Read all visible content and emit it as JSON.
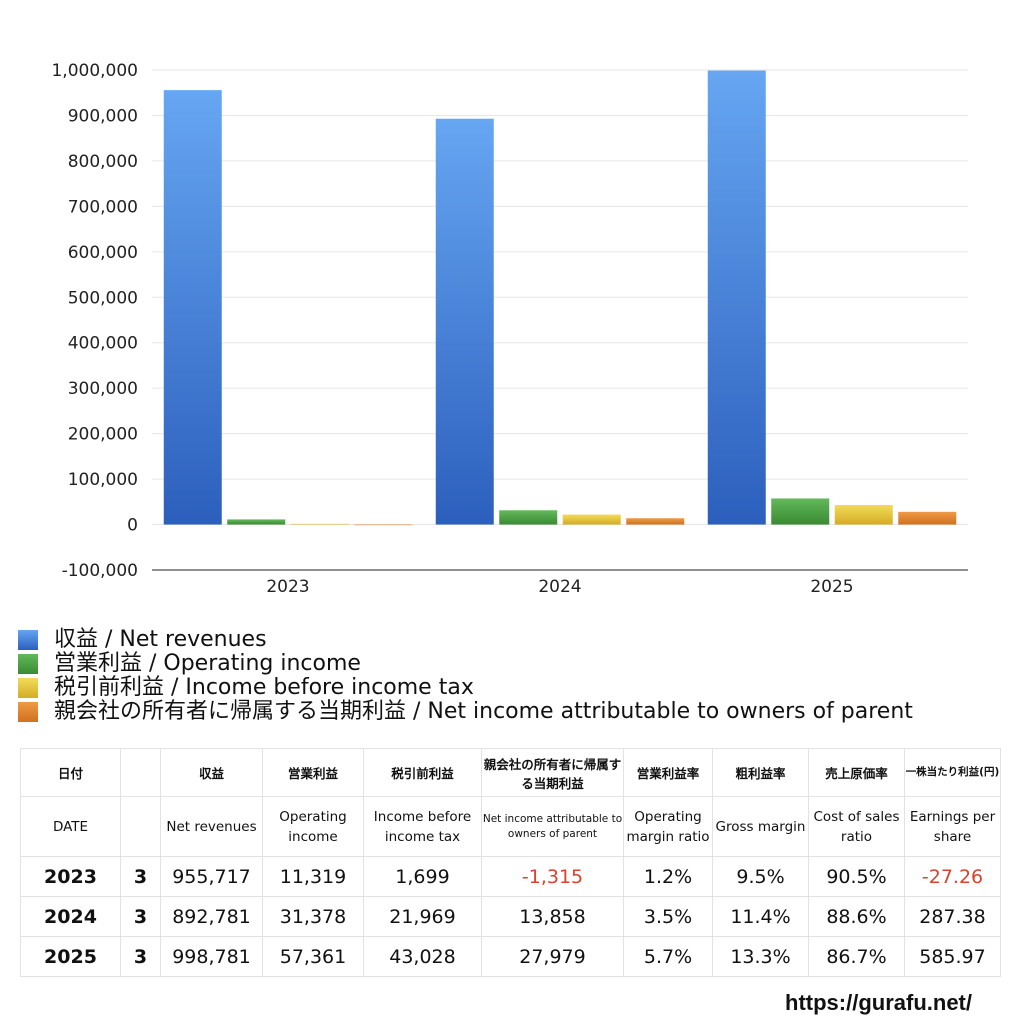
{
  "chart_data": {
    "type": "bar",
    "categories": [
      "2023",
      "2024",
      "2025"
    ],
    "series": [
      {
        "name": "収益 / Net revenues",
        "color": "#3b7fe0",
        "values": [
          955717,
          892781,
          998781
        ]
      },
      {
        "name": "営業利益 / Operating income",
        "color": "#4fa843",
        "values": [
          11319,
          31378,
          57361
        ]
      },
      {
        "name": "税引前利益 / Income before income tax",
        "color": "#e4c53a",
        "values": [
          1699,
          21969,
          43028
        ]
      },
      {
        "name": "親会社の所有者に帰属する当期利益 / Net income attributable to owners of parent",
        "color": "#e3832d",
        "values": [
          -1315,
          13858,
          27979
        ]
      }
    ],
    "ylim": [
      -100000,
      1000000
    ],
    "yticks": [
      "1,000,000",
      "900,000",
      "800,000",
      "700,000",
      "600,000",
      "500,000",
      "400,000",
      "300,000",
      "200,000",
      "100,000",
      "0",
      "-100,000"
    ],
    "ytick_values": [
      1000000,
      900000,
      800000,
      700000,
      600000,
      500000,
      400000,
      300000,
      200000,
      100000,
      0,
      -100000
    ],
    "grid": true
  },
  "table": {
    "header_ja": [
      "日付",
      "収益",
      "営業利益",
      "税引前利益",
      "親会社の所有者に帰属する当期利益",
      "営業利益率",
      "粗利益率",
      "売上原価率",
      "一株当たり利益(円)"
    ],
    "header_en": [
      "DATE",
      "Net revenues",
      "Operating income",
      "Income before income tax",
      "Net income attributable to owners of parent",
      "Operating margin ratio",
      "Gross margin",
      "Cost of sales ratio",
      "Earnings per share"
    ],
    "rows": [
      {
        "year": "2023",
        "month": "3",
        "revenues": "955,717",
        "operating": "11,319",
        "pretax": "1,699",
        "net": "-1,315",
        "op_margin": "1.2%",
        "gross": "9.5%",
        "cost": "90.5%",
        "eps": "-27.26"
      },
      {
        "year": "2024",
        "month": "3",
        "revenues": "892,781",
        "operating": "31,378",
        "pretax": "21,969",
        "net": "13,858",
        "op_margin": "3.5%",
        "gross": "11.4%",
        "cost": "88.6%",
        "eps": "287.38"
      },
      {
        "year": "2025",
        "month": "3",
        "revenues": "998,781",
        "operating": "57,361",
        "pretax": "43,028",
        "net": "27,979",
        "op_margin": "5.7%",
        "gross": "13.3%",
        "cost": "86.7%",
        "eps": "585.97"
      }
    ]
  },
  "footer": {
    "url": "https://gurafu.net/"
  }
}
